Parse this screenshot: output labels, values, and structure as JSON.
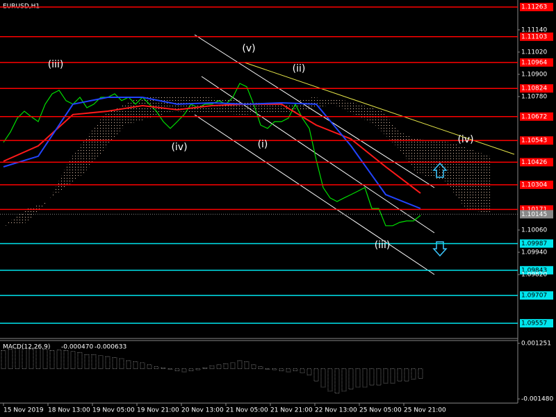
{
  "chart_data": [
    {
      "type": "line",
      "title": "EURUSD,H1",
      "x": [
        0,
        1,
        2,
        3,
        4,
        5,
        6,
        7,
        8,
        9,
        10,
        11,
        12,
        13,
        14,
        15,
        16,
        17,
        18,
        19,
        20,
        21,
        22,
        23,
        24,
        25,
        26,
        27,
        28,
        29,
        30,
        31,
        32,
        33,
        34,
        35,
        36,
        37,
        38,
        39,
        40,
        41,
        42,
        43,
        44,
        45,
        46,
        47,
        48,
        49,
        50,
        51,
        52,
        53,
        54,
        55,
        56,
        57,
        58,
        59,
        60
      ],
      "xlim": [
        -0.5,
        74
      ],
      "xticks": [
        {
          "value": 0,
          "label": "15 Nov 2019"
        },
        {
          "value": 6.4,
          "label": "18 Nov 13:00"
        },
        {
          "value": 12.8,
          "label": "19 Nov 05:00"
        },
        {
          "value": 19.2,
          "label": "19 Nov 21:00"
        },
        {
          "value": 25.6,
          "label": "20 Nov 13:00"
        },
        {
          "value": 32,
          "label": "21 Nov 05:00"
        },
        {
          "value": 38.4,
          "label": "21 Nov 21:00"
        },
        {
          "value": 44.8,
          "label": "22 Nov 13:00"
        },
        {
          "value": 51.2,
          "label": "25 Nov 05:00"
        },
        {
          "value": 57.6,
          "label": "25 Nov 21:00"
        }
      ],
      "ylim": [
        1.09475,
        1.11301
      ],
      "yticks": [
        {
          "value": 1.1114,
          "label": "1.11140"
        },
        {
          "value": 1.1102,
          "label": "1.11020"
        },
        {
          "value": 1.109,
          "label": "1.10900"
        },
        {
          "value": 1.1078,
          "label": "1.10780"
        },
        {
          "value": 1.1006,
          "label": "1.10060"
        },
        {
          "value": 1.0994,
          "label": "1.09940"
        },
        {
          "value": 1.0982,
          "label": "1.09820"
        }
      ],
      "series": [
        {
          "color": "#00e000",
          "values": [
            1.10533,
            1.10589,
            1.10664,
            1.10701,
            1.10671,
            1.10645,
            1.10739,
            1.10795,
            1.10814,
            1.10758,
            1.10739,
            1.10776,
            1.1072,
            1.10739,
            1.10776,
            1.10776,
            1.10795,
            1.10758,
            1.10776,
            1.10739,
            1.10776,
            1.10739,
            1.10701,
            1.10645,
            1.10608,
            1.10645,
            1.10683,
            1.10739,
            1.1072,
            1.10739,
            1.10739,
            1.10758,
            1.10739,
            1.10776,
            1.10851,
            1.10833,
            1.10739,
            1.10626,
            1.10608,
            1.10645,
            1.10645,
            1.10664,
            1.10739,
            1.10664,
            1.10608,
            1.10439,
            1.10289,
            1.10233,
            1.10214,
            1.10233,
            1.10251,
            1.1027,
            1.10289,
            1.10176,
            1.10176,
            1.10083,
            1.10083,
            1.10101,
            1.10109,
            1.10109,
            1.10139
          ]
        },
        {
          "color": "#ff1a1a",
          "x": [
            0,
            5,
            10,
            15,
            20,
            25,
            30,
            35,
            40,
            45,
            50,
            55,
            60
          ],
          "values": [
            1.10431,
            1.10514,
            1.10683,
            1.10701,
            1.10731,
            1.10709,
            1.10731,
            1.10739,
            1.10739,
            1.10626,
            1.10551,
            1.10401,
            1.10259
          ]
        },
        {
          "color": "#2244ff",
          "x": [
            0,
            5,
            10,
            15,
            20,
            25,
            30,
            35,
            40,
            45,
            50,
            55,
            60
          ],
          "values": [
            1.10401,
            1.10458,
            1.10739,
            1.10776,
            1.10776,
            1.10739,
            1.10746,
            1.10739,
            1.10746,
            1.10739,
            1.10514,
            1.10251,
            1.10176
          ]
        }
      ],
      "levels": [
        {
          "value": 1.11263,
          "color": "#ff0000"
        },
        {
          "value": 1.11103,
          "color": "#ff0000"
        },
        {
          "value": 1.10964,
          "color": "#ff0000"
        },
        {
          "value": 1.10824,
          "color": "#ff0000"
        },
        {
          "value": 1.10672,
          "color": "#ff0000"
        },
        {
          "value": 1.10543,
          "color": "#ff0000"
        },
        {
          "value": 1.10426,
          "color": "#ff0000"
        },
        {
          "value": 1.10304,
          "color": "#ff0000"
        },
        {
          "value": 1.10171,
          "color": "#ff0000"
        },
        {
          "value": 1.09987,
          "color": "#00e5ee"
        },
        {
          "value": 1.09843,
          "color": "#00e5ee"
        },
        {
          "value": 1.09707,
          "color": "#00e5ee"
        },
        {
          "value": 1.09557,
          "color": "#00e5ee"
        }
      ],
      "last_price": 1.10145,
      "annotations": [
        "(iii)",
        "(v)",
        "(ii)",
        "(iv)",
        "(i)",
        "(iii)",
        "(iv)"
      ]
    },
    {
      "type": "bar",
      "title": "MACD(12,26,9)",
      "readout": [
        {
          "value": -0.00047,
          "label": "-0.000470"
        },
        -0.000633
      ],
      "ylim": [
        -0.001685,
        0.001388
      ],
      "yticks": [
        0.001251,
        {
          "value": -0.00148,
          "label": "-0.001480"
        }
      ],
      "color": "#c8c8c8",
      "values": [
        0.0009,
        0.00095,
        0.001,
        0.001,
        0.00098,
        0.001,
        0.00095,
        0.0009,
        0.00092,
        0.0009,
        0.00085,
        0.0008,
        0.0007,
        0.0007,
        0.00065,
        0.0006,
        0.00055,
        0.0005,
        0.0004,
        0.00035,
        0.0003,
        0.0002,
        0.0001,
        5e-05,
        0,
        -0.0001,
        -0.00015,
        -0.0001,
        -5e-05,
        5e-05,
        0.00015,
        0.0002,
        0.00025,
        0.0003,
        0.0004,
        0.00035,
        0.0002,
        0.0001,
        0,
        -5e-05,
        -0.0001,
        -0.00015,
        -0.0001,
        -0.0002,
        -0.0003,
        -0.0006,
        -0.0009,
        -0.0011,
        -0.0012,
        -0.0011,
        -0.001,
        -0.0009,
        -0.0009,
        -0.0008,
        -0.0008,
        -0.0007,
        -0.0007,
        -0.0006,
        -0.0006,
        -0.0005,
        -0.00047
      ]
    }
  ]
}
